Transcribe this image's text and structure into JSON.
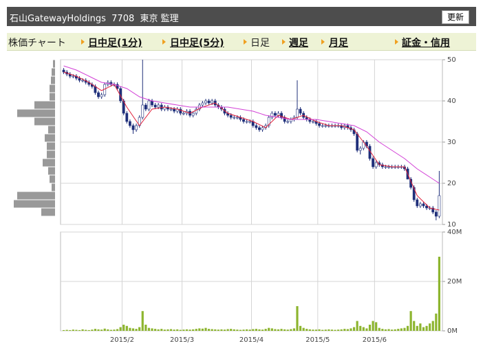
{
  "header": {
    "title": "石山GatewayHoldings  7708  東京 監理",
    "button": "更新"
  },
  "tabs": [
    "株価チャート",
    "日中足(1分)",
    "日中足(5分)",
    "日足",
    "週足",
    "月足",
    "証金・信用"
  ],
  "chart_data": [
    {
      "type": "candlestick",
      "ylim": [
        10,
        50
      ],
      "yticks": [
        10,
        20,
        30,
        40,
        50
      ],
      "grid": true,
      "up_color": "#ffffff",
      "down_color": "#1f2f7a",
      "open": [
        47.5,
        47,
        46.5,
        46,
        46,
        45.5,
        45,
        45,
        44.5,
        44,
        43.5,
        42,
        41,
        41.5,
        44,
        44.5,
        44,
        44,
        43,
        40,
        37,
        35,
        34,
        33,
        34,
        36,
        39,
        38,
        40,
        39,
        38.5,
        39,
        38,
        38.5,
        38,
        38,
        37.5,
        38,
        37,
        37,
        37.5,
        36.5,
        37,
        38,
        39,
        39.5,
        40,
        39.5,
        40,
        39,
        38.5,
        38,
        37,
        36.5,
        36,
        36,
        36,
        35.5,
        35,
        35,
        35,
        34,
        33.5,
        33,
        33.5,
        34,
        36,
        37,
        36.5,
        37,
        36,
        35,
        35,
        35.5,
        36,
        38,
        37,
        36,
        35.5,
        35,
        35,
        34.5,
        34,
        34,
        34,
        34,
        34,
        34,
        34,
        33.5,
        34,
        33.5,
        33,
        32,
        28,
        28.5,
        30,
        29,
        26,
        24,
        25,
        24.5,
        24,
        24,
        24,
        24,
        24,
        24,
        24,
        23.5,
        21,
        19,
        16,
        14.5,
        15,
        14.5,
        14,
        14,
        13,
        12
      ],
      "high": [
        48,
        47.5,
        47,
        46.5,
        46.5,
        46,
        45.5,
        45.5,
        45,
        44.5,
        44,
        42.5,
        42,
        44.5,
        45,
        45,
        44.5,
        44.5,
        43.5,
        40.5,
        37.5,
        35.5,
        34.5,
        34.5,
        36.5,
        50,
        39.5,
        40.5,
        40.5,
        39.5,
        39.5,
        39.5,
        39,
        39,
        38.5,
        38.5,
        38.5,
        38.5,
        37.5,
        38,
        38,
        37.5,
        38.5,
        39.5,
        40,
        40.5,
        40.5,
        40.5,
        40.5,
        39.5,
        39,
        38.5,
        37.5,
        37,
        36.5,
        36.5,
        36.5,
        36,
        35.5,
        35.5,
        35.5,
        34.5,
        34,
        34,
        34.5,
        36.5,
        37.5,
        37.5,
        37.5,
        37.5,
        36.5,
        35.5,
        36,
        36.5,
        45,
        38.5,
        37.5,
        36.5,
        36,
        35.5,
        35.5,
        35,
        34.5,
        34.5,
        34.5,
        34.5,
        34.5,
        34.5,
        34.5,
        34.5,
        34.5,
        34,
        33.5,
        32.5,
        29,
        30.5,
        30.5,
        29.5,
        26.5,
        25.5,
        25.5,
        25,
        24.5,
        24.5,
        24.5,
        24.5,
        24.5,
        24.5,
        24.5,
        24,
        21.5,
        19.5,
        16.5,
        15.5,
        15.5,
        15,
        14.5,
        14.5,
        13.5,
        23
      ],
      "low": [
        46.5,
        46,
        45.5,
        45.5,
        45,
        44.5,
        44.5,
        44,
        43.5,
        43,
        41.5,
        40.5,
        40.5,
        41,
        43.5,
        43.5,
        43.5,
        42.5,
        39.5,
        36.5,
        34.5,
        33.5,
        32,
        32.5,
        33.5,
        35.5,
        37.5,
        37.5,
        38.5,
        38,
        38,
        37.5,
        37.5,
        37.5,
        37.5,
        37,
        37,
        36.5,
        36.5,
        36.5,
        36,
        36,
        36.5,
        37.5,
        38.5,
        39,
        39,
        39,
        38.5,
        38,
        37.5,
        36.5,
        36,
        35.5,
        35.5,
        35.5,
        35,
        34.5,
        34.5,
        34.5,
        33.5,
        33,
        32.5,
        32.5,
        33,
        33.5,
        35.5,
        36,
        36,
        35.5,
        34.5,
        34.5,
        34.5,
        35,
        35.5,
        36.5,
        35.5,
        35,
        34.5,
        34.5,
        34,
        33.5,
        33.5,
        33.5,
        33.5,
        33.5,
        33.5,
        33.5,
        33,
        33,
        33,
        32.5,
        31.5,
        27.5,
        27,
        28,
        28.5,
        25.5,
        23.5,
        23.5,
        24,
        23.5,
        23.5,
        23.5,
        23.5,
        23.5,
        23.5,
        23.5,
        23,
        21,
        18.5,
        15.5,
        14,
        14,
        14,
        13.5,
        13.5,
        12.5,
        11,
        11.5
      ],
      "close": [
        47,
        46.5,
        46,
        46,
        45.5,
        45,
        45,
        44.5,
        44,
        43.5,
        42,
        41,
        41.5,
        44,
        44.5,
        44,
        44,
        43,
        40,
        37,
        35,
        34,
        33,
        34,
        36,
        39,
        38,
        40,
        39,
        38.5,
        39,
        38,
        38.5,
        38,
        38,
        37.5,
        38,
        37,
        37,
        37.5,
        36.5,
        37,
        38,
        39,
        39.5,
        40,
        39.5,
        40,
        39,
        38.5,
        38,
        37,
        36.5,
        36,
        36,
        36,
        35.5,
        35,
        35,
        35,
        34,
        33.5,
        33,
        33.5,
        34,
        36,
        37,
        36.5,
        37,
        36,
        35,
        35,
        35.5,
        36,
        38,
        37,
        36,
        35.5,
        35,
        35,
        34.5,
        34,
        34,
        34,
        34,
        34,
        34,
        34,
        33.5,
        34,
        33.5,
        33,
        32,
        28,
        28.5,
        30,
        29,
        26,
        24,
        25,
        24.5,
        24,
        24,
        24,
        24,
        24,
        24,
        24,
        23.5,
        21,
        19,
        16,
        14.5,
        15,
        14.5,
        14,
        14,
        13,
        12,
        17
      ],
      "lines": [
        {
          "color": "#e0203a",
          "x": [
            0,
            4,
            8,
            12,
            16,
            20,
            24,
            28,
            32,
            36,
            40,
            44,
            48,
            52,
            56,
            60,
            64,
            68,
            72,
            76,
            80,
            84,
            88,
            92,
            96,
            100,
            104,
            108,
            112,
            116,
            119
          ],
          "values": [
            47,
            46,
            44.5,
            42.5,
            44,
            38.5,
            34,
            38,
            38.5,
            38,
            37,
            38.5,
            39.5,
            37,
            36,
            35,
            33.5,
            36.5,
            35.5,
            36.5,
            35,
            34,
            34,
            33,
            29,
            24.5,
            24,
            24,
            17,
            14,
            13.5
          ]
        },
        {
          "color": "#d23fd6",
          "x": [
            0,
            4,
            8,
            12,
            16,
            20,
            24,
            28,
            32,
            36,
            40,
            44,
            48,
            52,
            56,
            60,
            64,
            68,
            72,
            76,
            80,
            84,
            88,
            92,
            96,
            100,
            104,
            108,
            112,
            116,
            119
          ],
          "values": [
            48.5,
            47.5,
            46,
            44.5,
            44,
            43,
            41,
            40,
            39.5,
            39,
            38.5,
            38.5,
            38.5,
            38.5,
            38,
            37.5,
            36.5,
            36,
            35.5,
            35.5,
            35.5,
            35,
            34.5,
            34,
            32.5,
            30,
            28,
            26,
            23.5,
            21.5,
            20
          ]
        }
      ],
      "volume_profile": {
        "color": "#999999",
        "xlim": [
          0,
          60
        ],
        "bins": [
          12,
          14,
          16,
          18,
          20,
          22,
          24,
          26,
          28,
          30,
          32,
          34,
          36,
          38,
          40,
          42,
          44,
          46,
          48,
          50
        ],
        "values": [
          20,
          60,
          55,
          5,
          8,
          10,
          18,
          12,
          12,
          15,
          10,
          30,
          55,
          30,
          8,
          8,
          6,
          5,
          3
        ]
      }
    },
    {
      "type": "bar",
      "color": "#8db52f",
      "grid": true,
      "ylim": [
        0,
        40
      ],
      "yticks": [
        {
          "value": 0,
          "label": "0M"
        },
        {
          "value": 20,
          "label": "20M"
        },
        {
          "value": 40,
          "label": "40M"
        }
      ],
      "xlim": [
        -1,
        120
      ],
      "xticks": [
        {
          "value": 18.5,
          "label": "2015/2"
        },
        {
          "value": 37.5,
          "label": "2015/3"
        },
        {
          "value": 59.5,
          "label": "2015/4"
        },
        {
          "value": 80.5,
          "label": "2015/5"
        },
        {
          "value": 98.5,
          "label": "2015/6"
        }
      ],
      "values": [
        0.3,
        0.4,
        0.3,
        0.5,
        0.4,
        0.3,
        0.6,
        0.4,
        0.3,
        0.5,
        0.8,
        0.6,
        0.5,
        0.9,
        0.6,
        0.4,
        0.5,
        0.7,
        1.5,
        2.5,
        2,
        1.2,
        1,
        0.8,
        1.5,
        8,
        2.5,
        1.2,
        1,
        0.8,
        0.6,
        0.8,
        0.5,
        0.6,
        0.7,
        0.5,
        0.6,
        0.4,
        0.5,
        0.6,
        0.5,
        0.6,
        0.8,
        1,
        0.9,
        1.2,
        0.8,
        0.7,
        0.6,
        0.5,
        0.6,
        0.5,
        0.7,
        0.8,
        0.6,
        0.5,
        0.4,
        0.5,
        0.6,
        0.5,
        0.7,
        0.8,
        0.6,
        0.5,
        0.8,
        1.2,
        1,
        0.7,
        0.6,
        0.8,
        0.6,
        0.5,
        0.7,
        1,
        10,
        2,
        1.2,
        0.8,
        0.6,
        0.5,
        0.5,
        0.6,
        0.4,
        0.5,
        0.6,
        0.5,
        0.4,
        0.5,
        0.6,
        0.8,
        0.7,
        1,
        1.5,
        4,
        2,
        1.5,
        1,
        2.5,
        4,
        3.5,
        1.2,
        0.8,
        0.6,
        0.7,
        0.5,
        0.6,
        0.8,
        1,
        1.2,
        2,
        8,
        4,
        2,
        3,
        1.5,
        2,
        3,
        4,
        7,
        30
      ]
    }
  ]
}
